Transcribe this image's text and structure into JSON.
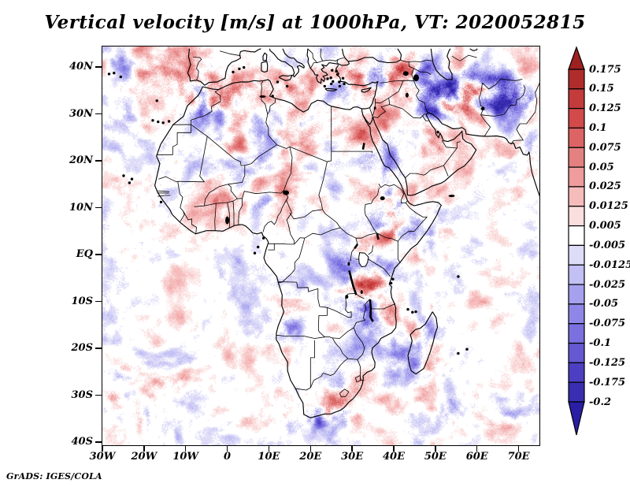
{
  "title": "Vertical velocity [m/s] at 1000hPa, VT: 2020052815",
  "credit": "GrADS: IGES/COLA",
  "chart_data": {
    "type": "heatmap",
    "title": "Vertical velocity [m/s] at 1000hPa, VT: 2020052815",
    "variable": "Vertical velocity",
    "units": "m/s",
    "level": "1000hPa",
    "valid_time": "2020052815",
    "region": "Africa, Middle East, southern Europe, western Indian Ocean",
    "projection": "lat-lon",
    "lon_range": [
      -30,
      75
    ],
    "lat_range": [
      -40.7,
      44.4
    ],
    "grid": false,
    "x_axis": {
      "ticks": [
        {
          "label": "30W",
          "lon": -30
        },
        {
          "label": "20W",
          "lon": -20
        },
        {
          "label": "10W",
          "lon": -10
        },
        {
          "label": "0",
          "lon": 0
        },
        {
          "label": "10E",
          "lon": 10
        },
        {
          "label": "20E",
          "lon": 20
        },
        {
          "label": "30E",
          "lon": 30
        },
        {
          "label": "40E",
          "lon": 40
        },
        {
          "label": "50E",
          "lon": 50
        },
        {
          "label": "60E",
          "lon": 60
        },
        {
          "label": "70E",
          "lon": 70
        }
      ]
    },
    "y_axis": {
      "ticks": [
        {
          "label": "40N",
          "lat": 40
        },
        {
          "label": "30N",
          "lat": 30
        },
        {
          "label": "20N",
          "lat": 20
        },
        {
          "label": "10N",
          "lat": 10
        },
        {
          "label": "EQ",
          "lat": 0
        },
        {
          "label": "10S",
          "lat": -10
        },
        {
          "label": "20S",
          "lat": -20
        },
        {
          "label": "30S",
          "lat": -30
        },
        {
          "label": "40S",
          "lat": -40
        }
      ]
    },
    "colorbar": {
      "orientation": "vertical-right",
      "has_top_arrow": true,
      "has_bottom_arrow": true,
      "boundary_labels": [
        "0.175",
        "0.15",
        "0.125",
        "0.1",
        "0.075",
        "0.05",
        "0.025",
        "0.0125",
        "0.005",
        "-0.005",
        "-0.0125",
        "-0.025",
        "-0.05",
        "-0.075",
        "-0.1",
        "-0.125",
        "-0.175",
        "-0.2"
      ],
      "boundary_values": [
        0.175,
        0.15,
        0.125,
        0.1,
        0.075,
        0.05,
        0.025,
        0.0125,
        0.005,
        -0.005,
        -0.0125,
        -0.025,
        -0.05,
        -0.075,
        -0.1,
        -0.125,
        -0.175,
        -0.2
      ],
      "segment_colors": [
        "#b02c2c",
        "#c33b3b",
        "#d24a4a",
        "#dc6464",
        "#e38080",
        "#ee9c9c",
        "#f6bcbc",
        "#fbdede",
        "#ffffff",
        "#dedcf8",
        "#c2c0f4",
        "#a6a1ef",
        "#8f87e8",
        "#7b70de",
        "#6658d2",
        "#4c3fc2",
        "#392eb2"
      ],
      "top_arrow_color": "#9e2121",
      "bottom_arrow_color": "#2a1fa4"
    },
    "field_description": "Fine-scale filaments of upward (red) and downward (blue) vertical velocity, strongest over mountainous terrain (Atlas, Turkey/Caucasus, Zagros, Afghanistan, Ethiopian Highlands, East African Rift, southern African escarpment, Madagascar); near zero (white) over most ocean areas",
    "source": "GrADS: IGES/COLA"
  }
}
